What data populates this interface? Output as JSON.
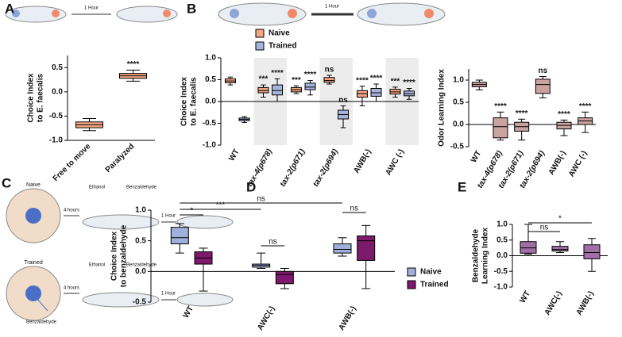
{
  "panel_labels": [
    "A",
    "B",
    "C",
    "D",
    "E"
  ],
  "diagram": {
    "a_time": "1 Hour",
    "b_time": "1 Hour",
    "c_naive": "Naive",
    "c_trained": "Trained",
    "c_4h_1": "4 hours",
    "c_4h_2": "4 hours",
    "c_ethanol_1": "Ethanol",
    "c_ethanol_2": "Ethanol",
    "c_benz_1": "Benzaldehyde",
    "c_benz_2": "Benzaldehyde",
    "c_1h_1": "1 Hour",
    "c_1h_2": "1 Hour",
    "c_benz_spot": "Benzaldehyde"
  },
  "chart_data": [
    {
      "type": "box",
      "ylabel": [
        "Choice Index",
        "to E. faecalis"
      ],
      "categories": [
        "Free to move",
        "Paralyzed"
      ],
      "ylim": [
        -1,
        0.75
      ],
      "yticks": [
        {
          "value": -1,
          "label": "-1.0"
        },
        -0.5,
        {
          "value": 0,
          "label": "0.0"
        },
        0.5
      ],
      "zero_line": false,
      "series": [
        {
          "color": "#f4a582",
          "values": [
            {
              "min": -0.8,
              "q1": -0.74,
              "median": -0.68,
              "q3": -0.62,
              "max": -0.55
            },
            {
              "min": 0.22,
              "q1": 0.28,
              "median": 0.33,
              "q3": 0.38,
              "max": 0.45
            }
          ],
          "annotations": [
            null,
            "****"
          ]
        }
      ]
    },
    {
      "type": "box",
      "ylabel": [
        "Choice Index",
        "to E. faecalis"
      ],
      "categories": [
        "WT",
        "tax-4(p678)",
        "tax-2(p671)",
        "tax-2(p694)",
        "AWB(-)",
        "AWC (-)"
      ],
      "ylim": [
        -1,
        1
      ],
      "yticks": [
        {
          "value": -1,
          "label": "-1.0"
        },
        -0.5,
        {
          "value": 0,
          "label": "0.0"
        },
        0.5,
        {
          "value": 1,
          "label": "1.0"
        }
      ],
      "zero_line": true,
      "series": [
        {
          "name": "Naive",
          "color": "#f4a582",
          "values": [
            {
              "min": 0.38,
              "q1": 0.43,
              "median": 0.47,
              "q3": 0.52,
              "max": 0.56
            },
            {
              "min": 0.1,
              "q1": 0.2,
              "median": 0.25,
              "q3": 0.32,
              "max": 0.38
            },
            {
              "min": 0.18,
              "q1": 0.22,
              "median": 0.27,
              "q3": 0.32,
              "max": 0.36
            },
            {
              "min": 0.4,
              "q1": 0.44,
              "median": 0.48,
              "q3": 0.55,
              "max": 0.6
            },
            {
              "min": -0.1,
              "q1": 0.1,
              "median": 0.18,
              "q3": 0.25,
              "max": 0.35
            },
            {
              "min": 0.1,
              "q1": 0.17,
              "median": 0.22,
              "q3": 0.28,
              "max": 0.33
            }
          ],
          "annotations": [
            null,
            "***",
            "***",
            "ns",
            "****",
            "***"
          ]
        },
        {
          "name": "Trained",
          "color": "#a6b4dc",
          "values": [
            {
              "min": -0.48,
              "q1": -0.44,
              "median": -0.41,
              "q3": -0.38,
              "max": -0.35
            },
            {
              "min": 0,
              "q1": 0.15,
              "median": 0.25,
              "q3": 0.38,
              "max": 0.52
            },
            {
              "min": 0.15,
              "q1": 0.27,
              "median": 0.33,
              "q3": 0.42,
              "max": 0.48
            },
            {
              "min": -0.6,
              "q1": -0.4,
              "median": -0.3,
              "q3": -0.2,
              "max": -0.1
            },
            {
              "min": 0,
              "q1": 0.12,
              "median": 0.2,
              "q3": 0.3,
              "max": 0.4
            },
            {
              "min": 0.05,
              "q1": 0.13,
              "median": 0.18,
              "q3": 0.24,
              "max": 0.3
            }
          ],
          "annotations": [
            null,
            "****",
            "****",
            "ns",
            "****",
            "****"
          ]
        }
      ]
    },
    {
      "type": "box",
      "ylabel": [
        "Odor Learning Index"
      ],
      "categories": [
        "WT",
        "tax-4(p678)",
        "tax-2(p671)",
        "tax-2(p694)",
        "AWB(-)",
        "AWC (-)"
      ],
      "ylim": [
        -0.5,
        1.25
      ],
      "yticks": [
        -0.5,
        {
          "value": 0,
          "label": "0.0"
        },
        0.5,
        {
          "value": 1,
          "label": "1.0"
        }
      ],
      "zero_line": true,
      "series": [
        {
          "color": "#c9a3a0",
          "values": [
            {
              "min": 0.78,
              "q1": 0.85,
              "median": 0.9,
              "q3": 0.95,
              "max": 1
            },
            {
              "min": -0.35,
              "q1": -0.3,
              "median": -0.05,
              "q3": 0.15,
              "max": 0.28
            },
            {
              "min": -0.35,
              "q1": -0.15,
              "median": -0.05,
              "q3": 0.05,
              "max": 0.12
            },
            {
              "min": 0.6,
              "q1": 0.7,
              "median": 0.9,
              "q3": 1.02,
              "max": 1.08
            },
            {
              "min": -0.25,
              "q1": -0.1,
              "median": -0.02,
              "q3": 0.05,
              "max": 0.1
            },
            {
              "min": -0.18,
              "q1": 0,
              "median": 0.08,
              "q3": 0.15,
              "max": 0.28
            }
          ],
          "annotations": [
            null,
            "****",
            "****",
            "ns",
            "****",
            "****"
          ]
        }
      ]
    },
    {
      "type": "box",
      "ylabel": [
        "Choice Index",
        "to benzaldehyde"
      ],
      "categories": [
        "WT",
        "AWC(-)",
        "AWB(-)"
      ],
      "ylim": [
        -0.5,
        1
      ],
      "yticks": [
        -0.5,
        {
          "value": 0,
          "label": "0.0"
        },
        0.5,
        {
          "value": 1,
          "label": "1.0"
        }
      ],
      "zero_line": true,
      "series": [
        {
          "name": "Naive",
          "color": "#9fb0da",
          "values": [
            {
              "min": 0.3,
              "q1": 0.45,
              "median": 0.55,
              "q3": 0.72,
              "max": 0.78
            },
            {
              "min": 0.05,
              "q1": 0.07,
              "median": 0.1,
              "q3": 0.12,
              "max": 0.3
            },
            {
              "min": 0.25,
              "q1": 0.3,
              "median": 0.36,
              "q3": 0.45,
              "max": 0.55
            }
          ]
        },
        {
          "name": "Trained",
          "color": "#7d1a6c",
          "values": [
            {
              "min": -0.32,
              "q1": 0.12,
              "median": 0.22,
              "q3": 0.32,
              "max": 0.38
            },
            {
              "min": -0.28,
              "q1": -0.2,
              "median": -0.05,
              "q3": 0,
              "max": 0.05
            },
            {
              "min": -0.28,
              "q1": 0.18,
              "median": 0.5,
              "q3": 0.58,
              "max": 0.75
            }
          ]
        }
      ],
      "brackets": [
        "ns",
        "***",
        "*",
        "ns",
        "ns"
      ]
    },
    {
      "type": "box",
      "ylabel": [
        "Benzaldehyde",
        "Learning Index"
      ],
      "categories": [
        "WT",
        "AWC(-)",
        "AWB(-)"
      ],
      "ylim": [
        -1,
        1
      ],
      "yticks": [
        {
          "value": -1,
          "label": "-1.0"
        },
        -0.5,
        {
          "value": 0,
          "label": "0.0"
        },
        0.5,
        {
          "value": 1,
          "label": "1.0"
        }
      ],
      "zero_line": true,
      "series": [
        {
          "color": "#a16fa5",
          "values": [
            {
              "min": 0.05,
              "q1": 0.08,
              "median": 0.25,
              "q3": 0.45,
              "max": 1
            },
            {
              "min": 0.1,
              "q1": 0.15,
              "median": 0.2,
              "q3": 0.3,
              "max": 0.45
            },
            {
              "min": -0.5,
              "q1": -0.1,
              "median": 0.1,
              "q3": 0.35,
              "max": 0.55
            }
          ]
        }
      ],
      "brackets": [
        "ns",
        "*"
      ]
    }
  ]
}
